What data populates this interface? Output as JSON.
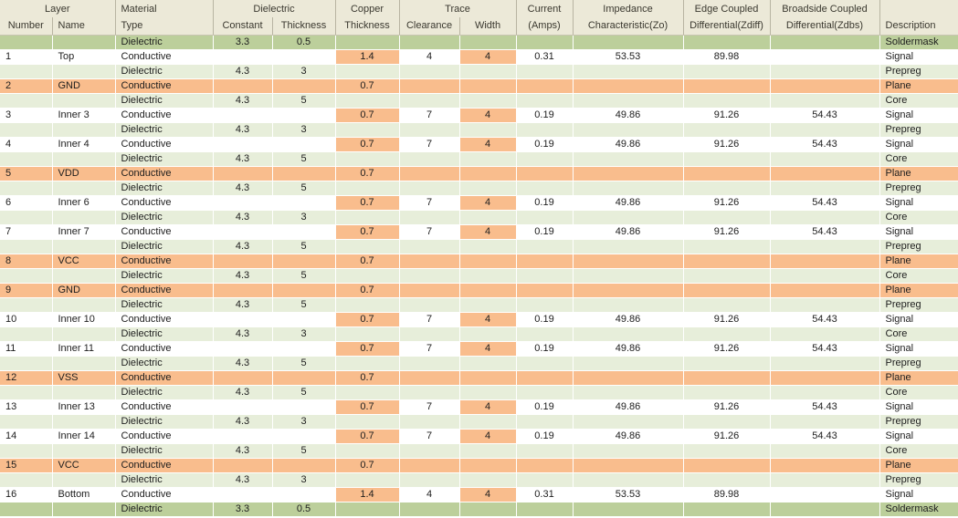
{
  "window": {
    "title": "PCB Layer Stackup"
  },
  "colors": {
    "header-bg": "#ece9d8",
    "header-text": "#3a382f",
    "sep": "#b8b4a2",
    "soldermask": "#bccf9b",
    "dielectric": "#e7eeda",
    "plane": "#f9bd8d",
    "hl": "#f9bd8d",
    "grid": "#ffffff",
    "text": "#1d1d1d"
  },
  "table": {
    "group_headers": [
      {
        "label": "Layer"
      },
      {
        "label": "Material"
      },
      {
        "label": "Dielectric"
      },
      {
        "label": "Copper"
      },
      {
        "label": "Trace"
      },
      {
        "label": "Current"
      },
      {
        "label": "Impedance"
      },
      {
        "label": "Edge Coupled"
      },
      {
        "label": "Broadside Coupled"
      },
      {
        "label": ""
      }
    ],
    "sub_headers": [
      "Number",
      "Name",
      "Type",
      "Constant",
      "Thickness",
      "Thickness",
      "Clearance",
      "Width",
      "(Amps)",
      "Characteristic(Zo)",
      "Differential(Zdiff)",
      "Differential(Zdbs)",
      "Description"
    ],
    "rows": [
      {
        "style": "soldermask",
        "number": "",
        "name": "",
        "type": "Dielectric",
        "constant": "3.3",
        "thickness": "0.5",
        "copper": "",
        "clearance": "",
        "width": "",
        "amps": "",
        "zo": "",
        "zdiff": "",
        "zdbs": "",
        "description": "Soldermask"
      },
      {
        "style": "signal",
        "number": "1",
        "name": "Top",
        "type": "Conductive",
        "constant": "",
        "thickness": "",
        "copper": "1.4",
        "clearance": "4",
        "width": "4",
        "amps": "0.31",
        "zo": "53.53",
        "zdiff": "89.98",
        "zdbs": "",
        "description": "Signal"
      },
      {
        "style": "dielectric",
        "number": "",
        "name": "",
        "type": "Dielectric",
        "constant": "4.3",
        "thickness": "3",
        "copper": "",
        "clearance": "",
        "width": "",
        "amps": "",
        "zo": "",
        "zdiff": "",
        "zdbs": "",
        "description": "Prepreg"
      },
      {
        "style": "plane",
        "number": "2",
        "name": "GND",
        "type": "Conductive",
        "constant": "",
        "thickness": "",
        "copper": "0.7",
        "clearance": "",
        "width": "",
        "amps": "",
        "zo": "",
        "zdiff": "",
        "zdbs": "",
        "description": "Plane"
      },
      {
        "style": "dielectric",
        "number": "",
        "name": "",
        "type": "Dielectric",
        "constant": "4.3",
        "thickness": "5",
        "copper": "",
        "clearance": "",
        "width": "",
        "amps": "",
        "zo": "",
        "zdiff": "",
        "zdbs": "",
        "description": "Core"
      },
      {
        "style": "signal",
        "number": "3",
        "name": "Inner 3",
        "type": "Conductive",
        "constant": "",
        "thickness": "",
        "copper": "0.7",
        "clearance": "7",
        "width": "4",
        "amps": "0.19",
        "zo": "49.86",
        "zdiff": "91.26",
        "zdbs": "54.43",
        "description": "Signal"
      },
      {
        "style": "dielectric",
        "number": "",
        "name": "",
        "type": "Dielectric",
        "constant": "4.3",
        "thickness": "3",
        "copper": "",
        "clearance": "",
        "width": "",
        "amps": "",
        "zo": "",
        "zdiff": "",
        "zdbs": "",
        "description": "Prepreg"
      },
      {
        "style": "signal",
        "number": "4",
        "name": "Inner 4",
        "type": "Conductive",
        "constant": "",
        "thickness": "",
        "copper": "0.7",
        "clearance": "7",
        "width": "4",
        "amps": "0.19",
        "zo": "49.86",
        "zdiff": "91.26",
        "zdbs": "54.43",
        "description": "Signal"
      },
      {
        "style": "dielectric",
        "number": "",
        "name": "",
        "type": "Dielectric",
        "constant": "4.3",
        "thickness": "5",
        "copper": "",
        "clearance": "",
        "width": "",
        "amps": "",
        "zo": "",
        "zdiff": "",
        "zdbs": "",
        "description": "Core"
      },
      {
        "style": "plane",
        "number": "5",
        "name": "VDD",
        "type": "Conductive",
        "constant": "",
        "thickness": "",
        "copper": "0.7",
        "clearance": "",
        "width": "",
        "amps": "",
        "zo": "",
        "zdiff": "",
        "zdbs": "",
        "description": "Plane"
      },
      {
        "style": "dielectric",
        "number": "",
        "name": "",
        "type": "Dielectric",
        "constant": "4.3",
        "thickness": "5",
        "copper": "",
        "clearance": "",
        "width": "",
        "amps": "",
        "zo": "",
        "zdiff": "",
        "zdbs": "",
        "description": "Prepreg"
      },
      {
        "style": "signal",
        "number": "6",
        "name": "Inner 6",
        "type": "Conductive",
        "constant": "",
        "thickness": "",
        "copper": "0.7",
        "clearance": "7",
        "width": "4",
        "amps": "0.19",
        "zo": "49.86",
        "zdiff": "91.26",
        "zdbs": "54.43",
        "description": "Signal"
      },
      {
        "style": "dielectric",
        "number": "",
        "name": "",
        "type": "Dielectric",
        "constant": "4.3",
        "thickness": "3",
        "copper": "",
        "clearance": "",
        "width": "",
        "amps": "",
        "zo": "",
        "zdiff": "",
        "zdbs": "",
        "description": "Core"
      },
      {
        "style": "signal",
        "number": "7",
        "name": "Inner 7",
        "type": "Conductive",
        "constant": "",
        "thickness": "",
        "copper": "0.7",
        "clearance": "7",
        "width": "4",
        "amps": "0.19",
        "zo": "49.86",
        "zdiff": "91.26",
        "zdbs": "54.43",
        "description": "Signal"
      },
      {
        "style": "dielectric",
        "number": "",
        "name": "",
        "type": "Dielectric",
        "constant": "4.3",
        "thickness": "5",
        "copper": "",
        "clearance": "",
        "width": "",
        "amps": "",
        "zo": "",
        "zdiff": "",
        "zdbs": "",
        "description": "Prepreg"
      },
      {
        "style": "plane",
        "number": "8",
        "name": "VCC",
        "type": "Conductive",
        "constant": "",
        "thickness": "",
        "copper": "0.7",
        "clearance": "",
        "width": "",
        "amps": "",
        "zo": "",
        "zdiff": "",
        "zdbs": "",
        "description": "Plane"
      },
      {
        "style": "dielectric",
        "number": "",
        "name": "",
        "type": "Dielectric",
        "constant": "4.3",
        "thickness": "5",
        "copper": "",
        "clearance": "",
        "width": "",
        "amps": "",
        "zo": "",
        "zdiff": "",
        "zdbs": "",
        "description": "Core"
      },
      {
        "style": "plane",
        "number": "9",
        "name": "GND",
        "type": "Conductive",
        "constant": "",
        "thickness": "",
        "copper": "0.7",
        "clearance": "",
        "width": "",
        "amps": "",
        "zo": "",
        "zdiff": "",
        "zdbs": "",
        "description": "Plane"
      },
      {
        "style": "dielectric",
        "number": "",
        "name": "",
        "type": "Dielectric",
        "constant": "4.3",
        "thickness": "5",
        "copper": "",
        "clearance": "",
        "width": "",
        "amps": "",
        "zo": "",
        "zdiff": "",
        "zdbs": "",
        "description": "Prepreg"
      },
      {
        "style": "signal",
        "number": "10",
        "name": "Inner 10",
        "type": "Conductive",
        "constant": "",
        "thickness": "",
        "copper": "0.7",
        "clearance": "7",
        "width": "4",
        "amps": "0.19",
        "zo": "49.86",
        "zdiff": "91.26",
        "zdbs": "54.43",
        "description": "Signal"
      },
      {
        "style": "dielectric",
        "number": "",
        "name": "",
        "type": "Dielectric",
        "constant": "4.3",
        "thickness": "3",
        "copper": "",
        "clearance": "",
        "width": "",
        "amps": "",
        "zo": "",
        "zdiff": "",
        "zdbs": "",
        "description": "Core"
      },
      {
        "style": "signal",
        "number": "11",
        "name": "Inner 11",
        "type": "Conductive",
        "constant": "",
        "thickness": "",
        "copper": "0.7",
        "clearance": "7",
        "width": "4",
        "amps": "0.19",
        "zo": "49.86",
        "zdiff": "91.26",
        "zdbs": "54.43",
        "description": "Signal"
      },
      {
        "style": "dielectric",
        "number": "",
        "name": "",
        "type": "Dielectric",
        "constant": "4.3",
        "thickness": "5",
        "copper": "",
        "clearance": "",
        "width": "",
        "amps": "",
        "zo": "",
        "zdiff": "",
        "zdbs": "",
        "description": "Prepreg"
      },
      {
        "style": "plane",
        "number": "12",
        "name": "VSS",
        "type": "Conductive",
        "constant": "",
        "thickness": "",
        "copper": "0.7",
        "clearance": "",
        "width": "",
        "amps": "",
        "zo": "",
        "zdiff": "",
        "zdbs": "",
        "description": "Plane"
      },
      {
        "style": "dielectric",
        "number": "",
        "name": "",
        "type": "Dielectric",
        "constant": "4.3",
        "thickness": "5",
        "copper": "",
        "clearance": "",
        "width": "",
        "amps": "",
        "zo": "",
        "zdiff": "",
        "zdbs": "",
        "description": "Core"
      },
      {
        "style": "signal",
        "number": "13",
        "name": "Inner 13",
        "type": "Conductive",
        "constant": "",
        "thickness": "",
        "copper": "0.7",
        "clearance": "7",
        "width": "4",
        "amps": "0.19",
        "zo": "49.86",
        "zdiff": "91.26",
        "zdbs": "54.43",
        "description": "Signal"
      },
      {
        "style": "dielectric",
        "number": "",
        "name": "",
        "type": "Dielectric",
        "constant": "4.3",
        "thickness": "3",
        "copper": "",
        "clearance": "",
        "width": "",
        "amps": "",
        "zo": "",
        "zdiff": "",
        "zdbs": "",
        "description": "Prepreg"
      },
      {
        "style": "signal",
        "number": "14",
        "name": "Inner 14",
        "type": "Conductive",
        "constant": "",
        "thickness": "",
        "copper": "0.7",
        "clearance": "7",
        "width": "4",
        "amps": "0.19",
        "zo": "49.86",
        "zdiff": "91.26",
        "zdbs": "54.43",
        "description": "Signal"
      },
      {
        "style": "dielectric",
        "number": "",
        "name": "",
        "type": "Dielectric",
        "constant": "4.3",
        "thickness": "5",
        "copper": "",
        "clearance": "",
        "width": "",
        "amps": "",
        "zo": "",
        "zdiff": "",
        "zdbs": "",
        "description": "Core"
      },
      {
        "style": "plane",
        "number": "15",
        "name": "VCC",
        "type": "Conductive",
        "constant": "",
        "thickness": "",
        "copper": "0.7",
        "clearance": "",
        "width": "",
        "amps": "",
        "zo": "",
        "zdiff": "",
        "zdbs": "",
        "description": "Plane"
      },
      {
        "style": "dielectric",
        "number": "",
        "name": "",
        "type": "Dielectric",
        "constant": "4.3",
        "thickness": "3",
        "copper": "",
        "clearance": "",
        "width": "",
        "amps": "",
        "zo": "",
        "zdiff": "",
        "zdbs": "",
        "description": "Prepreg"
      },
      {
        "style": "signal",
        "number": "16",
        "name": "Bottom",
        "type": "Conductive",
        "constant": "",
        "thickness": "",
        "copper": "1.4",
        "clearance": "4",
        "width": "4",
        "amps": "0.31",
        "zo": "53.53",
        "zdiff": "89.98",
        "zdbs": "",
        "description": "Signal"
      },
      {
        "style": "soldermask",
        "number": "",
        "name": "",
        "type": "Dielectric",
        "constant": "3.3",
        "thickness": "0.5",
        "copper": "",
        "clearance": "",
        "width": "",
        "amps": "",
        "zo": "",
        "zdiff": "",
        "zdbs": "",
        "description": "Soldermask"
      }
    ]
  }
}
